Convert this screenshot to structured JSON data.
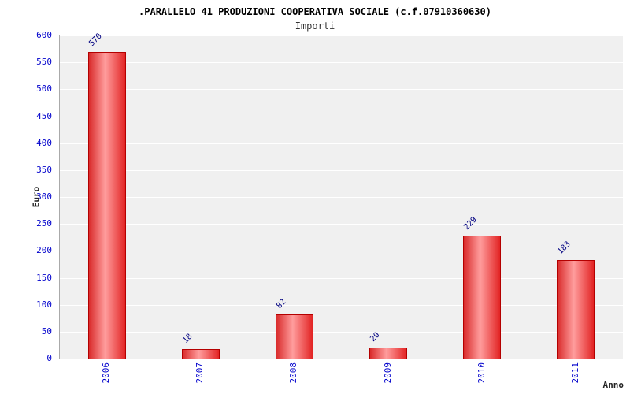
{
  "chart_data": {
    "type": "bar",
    "title": ".PARALLELO 41 PRODUZIONI COOPERATIVA SOCIALE (c.f.07910360630)",
    "subtitle": "Importi",
    "categories": [
      "2006",
      "2007",
      "2008",
      "2009",
      "2010",
      "2011"
    ],
    "values": [
      570,
      18,
      82,
      20,
      229,
      183
    ],
    "xlabel": "Anno",
    "ylabel": "Euro",
    "ylim": [
      0,
      600
    ],
    "ytick_step": 50,
    "grid": true,
    "legend": "none",
    "bar_color": "#e22424",
    "bar_gradient_edge": "#d92b2b",
    "bar_gradient_center": "#ff9d9d",
    "value_label_color": "#000080",
    "tick_label_color": "#0000cc",
    "plot_background": "#f0f0f0"
  }
}
